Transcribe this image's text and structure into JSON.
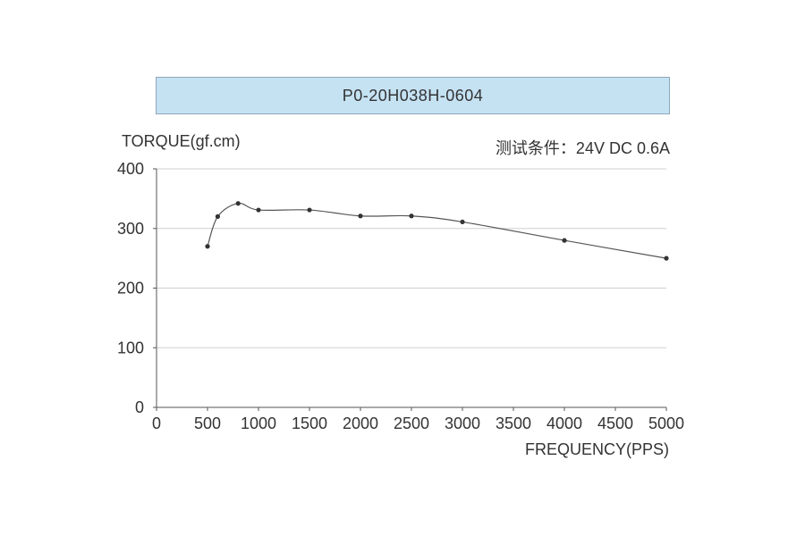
{
  "chart_data": {
    "type": "line",
    "title": "P0-20H038H-0604",
    "condition": "测试条件：24V DC   0.6A",
    "xlabel": "FREQUENCY(PPS)",
    "ylabel": "TORQUE(gf.cm)",
    "xlim": [
      0,
      5000
    ],
    "ylim": [
      0,
      400
    ],
    "x_ticks": [
      0,
      500,
      1000,
      1500,
      2000,
      2500,
      3000,
      3500,
      4000,
      4500,
      5000
    ],
    "y_ticks": [
      0,
      100,
      200,
      300,
      400
    ],
    "grid": "horizontal",
    "series": [
      {
        "x": [
          500,
          600,
          800,
          1000,
          1500,
          2000,
          2500,
          3000,
          4000,
          5000
        ],
        "y": [
          270,
          320,
          342,
          331,
          331,
          321,
          321,
          311,
          280,
          250
        ]
      }
    ],
    "colors": {
      "line": "#555555",
      "marker": "#333333",
      "grid": "#d0d0d0",
      "axis": "#555555"
    }
  }
}
